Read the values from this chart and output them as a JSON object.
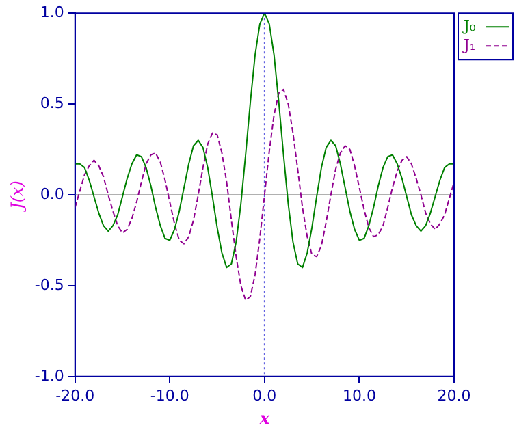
{
  "chart_data": {
    "type": "line",
    "xlabel": "x",
    "ylabel": "J(x)",
    "legend": "top right",
    "grid": false,
    "marker": "none",
    "x": [
      -20,
      -19.5,
      -19,
      -18.5,
      -18,
      -17.5,
      -17,
      -16.5,
      -16,
      -15.5,
      -15,
      -14.5,
      -14,
      -13.5,
      -13,
      -12.5,
      -12,
      -11.5,
      -11,
      -10.5,
      -10,
      -9.5,
      -9,
      -8.5,
      -8,
      -7.5,
      -7,
      -6.5,
      -6,
      -5.5,
      -5,
      -4.5,
      -4,
      -3.5,
      -3,
      -2.5,
      -2,
      -1.5,
      -1,
      -0.5,
      0,
      0.5,
      1,
      1.5,
      2,
      2.5,
      3,
      3.5,
      4,
      4.5,
      5,
      5.5,
      6,
      6.5,
      7,
      7.5,
      8,
      8.5,
      9,
      9.5,
      10,
      10.5,
      11,
      11.5,
      12,
      12.5,
      13,
      13.5,
      14,
      14.5,
      15,
      15.5,
      16,
      16.5,
      17,
      17.5,
      18,
      18.5,
      19,
      19.5,
      20
    ],
    "xlim": [
      -20,
      20
    ],
    "xticks": [
      {
        "value": -20,
        "label": "-20.0"
      },
      {
        "value": -10,
        "label": "-10.0"
      },
      {
        "value": 0,
        "label": "0.0"
      },
      {
        "value": 10,
        "label": "10.0"
      },
      {
        "value": 20,
        "label": "20.0"
      }
    ],
    "ylim": [
      -1,
      1
    ],
    "yticks": [
      {
        "value": -1,
        "label": "-1.0"
      },
      {
        "value": -0.5,
        "label": "-0.5"
      },
      {
        "value": 0,
        "label": "0.0"
      },
      {
        "value": 0.5,
        "label": "0.5"
      },
      {
        "value": 1,
        "label": "1.0"
      }
    ],
    "ref_lines": [
      {
        "axis": "y",
        "value": 0,
        "color": "#b0b0b0",
        "line_style": "solid"
      },
      {
        "axis": "x",
        "value": 0,
        "color": "#6060e0",
        "line_style": "dotted"
      }
    ],
    "series": [
      {
        "name": "J₀",
        "color": "#008000",
        "line_style": "solid",
        "values": [
          0.17,
          0.17,
          0.15,
          0.08,
          -0.01,
          -0.1,
          -0.17,
          -0.2,
          -0.17,
          -0.11,
          -0.01,
          0.09,
          0.17,
          0.22,
          0.21,
          0.15,
          0.05,
          -0.07,
          -0.17,
          -0.24,
          -0.25,
          -0.19,
          -0.09,
          0.04,
          0.17,
          0.27,
          0.3,
          0.26,
          0.15,
          -0.01,
          -0.18,
          -0.32,
          -0.4,
          -0.38,
          -0.26,
          -0.05,
          0.22,
          0.51,
          0.77,
          0.94,
          1,
          0.94,
          0.77,
          0.51,
          0.22,
          -0.05,
          -0.26,
          -0.38,
          -0.4,
          -0.32,
          -0.18,
          -0.01,
          0.15,
          0.26,
          0.3,
          0.27,
          0.17,
          0.04,
          -0.09,
          -0.19,
          -0.25,
          -0.24,
          -0.17,
          -0.07,
          0.05,
          0.15,
          0.21,
          0.22,
          0.17,
          0.09,
          -0.01,
          -0.11,
          -0.17,
          -0.2,
          -0.17,
          -0.1,
          -0.01,
          0.08,
          0.15,
          0.17,
          0.17
        ]
      },
      {
        "name": "J₁",
        "color": "#900090",
        "line_style": "dashed",
        "values": [
          -0.07,
          0.02,
          0.11,
          0.16,
          0.19,
          0.16,
          0.1,
          0,
          -0.09,
          -0.17,
          -0.21,
          -0.19,
          -0.13,
          -0.04,
          0.07,
          0.17,
          0.22,
          0.23,
          0.18,
          0.08,
          -0.04,
          -0.16,
          -0.25,
          -0.27,
          -0.23,
          -0.14,
          0,
          0.15,
          0.28,
          0.34,
          0.33,
          0.23,
          0.07,
          -0.14,
          -0.34,
          -0.5,
          -0.58,
          -0.56,
          -0.44,
          -0.24,
          0,
          0.24,
          0.44,
          0.56,
          0.58,
          0.5,
          0.34,
          0.14,
          -0.07,
          -0.23,
          -0.33,
          -0.34,
          -0.28,
          -0.15,
          0,
          0.14,
          0.23,
          0.27,
          0.25,
          0.16,
          0.04,
          -0.08,
          -0.18,
          -0.23,
          -0.22,
          -0.17,
          -0.07,
          0.04,
          0.13,
          0.19,
          0.21,
          0.17,
          0.09,
          0,
          -0.1,
          -0.16,
          -0.19,
          -0.16,
          -0.11,
          -0.02,
          0.07
        ]
      }
    ]
  }
}
